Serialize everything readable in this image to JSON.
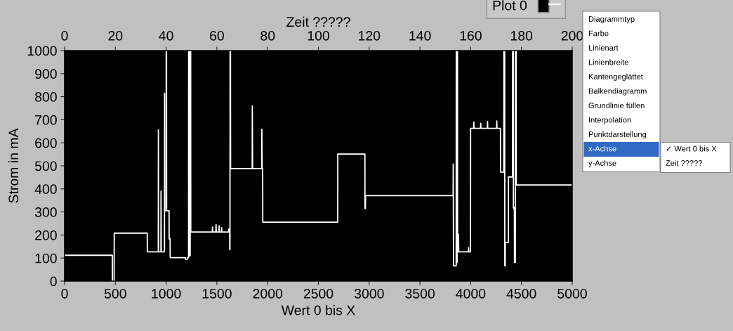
{
  "chart_data": {
    "type": "line",
    "xlabel": "Wert 0 bis X",
    "ylabel": "Strom in mA",
    "x2label": "Zeit ?????",
    "xlim": [
      0,
      5000
    ],
    "xticks": [
      0,
      500,
      1000,
      1500,
      2000,
      2500,
      3000,
      3500,
      4000,
      4500,
      5000
    ],
    "ylim": [
      0,
      1000
    ],
    "yticks": [
      0,
      100,
      200,
      300,
      400,
      500,
      600,
      700,
      800,
      900,
      1000
    ],
    "x2lim": [
      0,
      200
    ],
    "x2ticks": [
      0,
      20,
      40,
      60,
      80,
      100,
      120,
      140,
      160,
      180,
      200
    ],
    "legend": "top right",
    "series": [
      {
        "name": "Plot 0",
        "color": "#ffffff",
        "x": [
          0,
          470,
          471,
          488,
          489,
          814,
          815,
          923,
          924,
          926,
          949,
          950,
          952,
          984,
          985,
          986,
          1000,
          1001,
          1004,
          1005,
          1029,
          1030,
          1039,
          1040,
          1190,
          1191,
          1210,
          1211,
          1221,
          1222,
          1226,
          1227,
          1237,
          1238,
          1242,
          1243,
          1455,
          1457,
          1459,
          1490,
          1492,
          1494,
          1520,
          1522,
          1524,
          1545,
          1547,
          1549,
          1616,
          1618,
          1620,
          1626,
          1627,
          1629,
          1630,
          1634,
          1635,
          1848,
          1849,
          1852,
          1942,
          1943,
          1946,
          1951,
          1952,
          2690,
          2691,
          2958,
          2959,
          2963,
          2964,
          3827,
          3828,
          3831,
          3857,
          3858,
          3862,
          3863,
          3866,
          3867,
          3870,
          3871,
          3879,
          3880,
          3882,
          3978,
          3979,
          3981,
          3998,
          3999,
          4029,
          4031,
          4033,
          4097,
          4099,
          4101,
          4164,
          4166,
          4168,
          4255,
          4257,
          4259,
          4293,
          4294,
          4326,
          4327,
          4335,
          4336,
          4340,
          4341,
          4371,
          4372,
          4412,
          4413,
          4420,
          4421,
          4430,
          4431,
          4440,
          4441,
          4448,
          4449,
          5000
        ],
        "values": [
          112,
          112,
          0,
          0,
          208,
          208,
          127,
          127,
          656,
          127,
          127,
          390,
          127,
          127,
          815,
          305,
          305,
          1000,
          1000,
          305,
          305,
          183,
          183,
          102,
          102,
          95,
          95,
          102,
          102,
          1000,
          1000,
          110,
          110,
          1000,
          1000,
          213,
          213,
          235,
          213,
          213,
          245,
          213,
          213,
          240,
          213,
          213,
          232,
          213,
          213,
          226,
          213,
          213,
          137,
          137,
          1000,
          1000,
          488,
          488,
          760,
          488,
          488,
          659,
          488,
          488,
          256,
          256,
          551,
          551,
          315,
          315,
          371,
          371,
          508,
          66,
          66,
          1000,
          1000,
          80,
          80,
          1000,
          1000,
          127,
          127,
          203,
          127,
          127,
          145,
          127,
          127,
          663,
          663,
          690,
          663,
          663,
          685,
          663,
          663,
          692,
          663,
          663,
          695,
          663,
          663,
          473,
          473,
          1000,
          1000,
          66,
          66,
          168,
          168,
          452,
          452,
          1000,
          1000,
          317,
          317,
          81,
          81,
          1000,
          1000,
          417,
          417
        ]
      }
    ],
    "annotations": [
      "Diagrammtyp",
      "Farbe",
      "Linienart",
      "Linienbreite",
      "Kantengeglättet",
      "Balkendiagramm",
      "Grundlinie füllen",
      "Interpolation",
      "Punktdarstellung",
      "x-Achse",
      "y-Achse",
      "✓ Wert 0 bis X",
      "Zeit ?????"
    ]
  }
}
